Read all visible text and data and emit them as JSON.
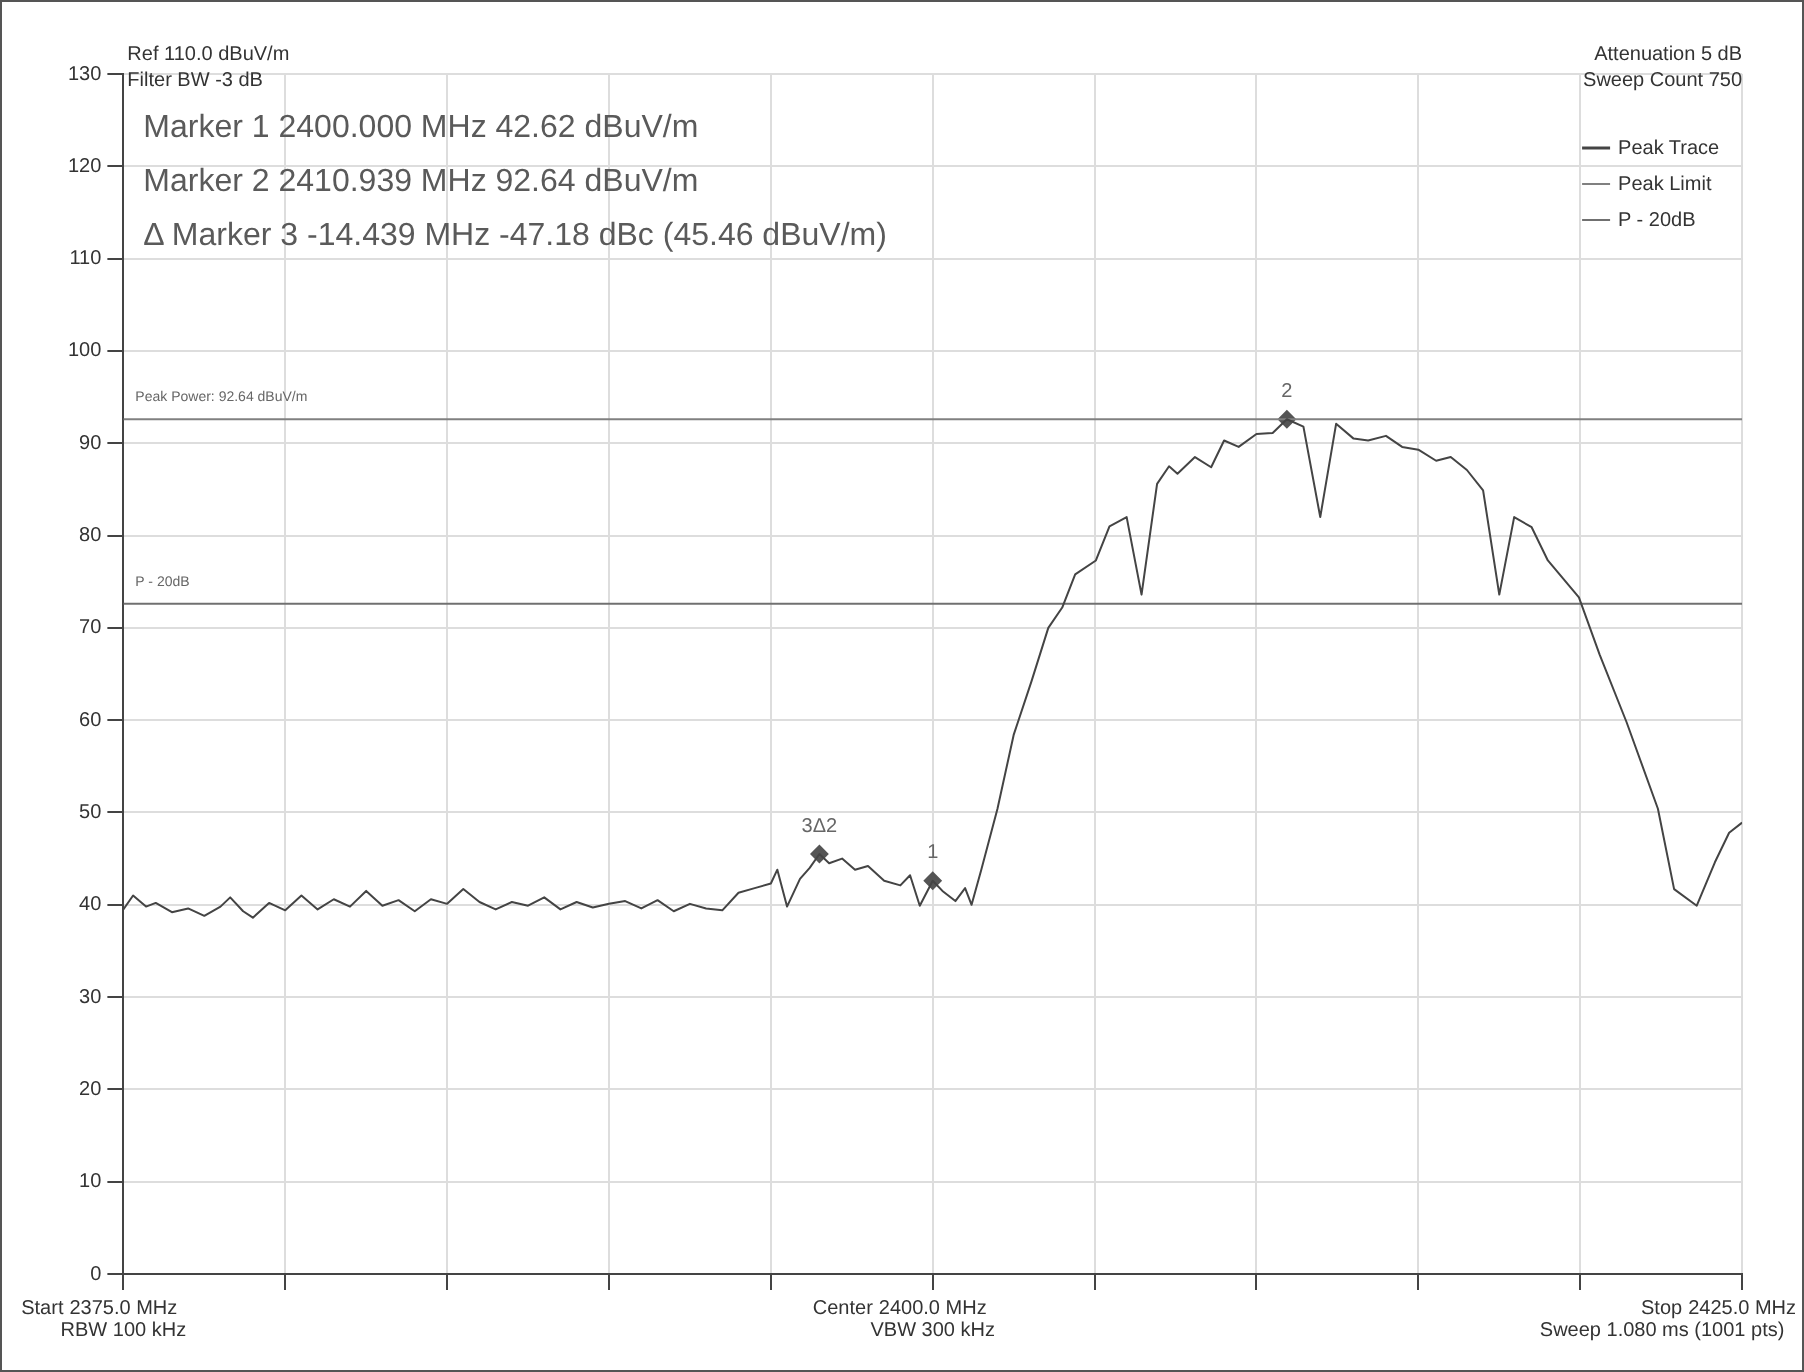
{
  "chart_data": {
    "type": "line",
    "xlim": [
      2375,
      2425
    ],
    "xticks": [
      {
        "value": 2375,
        "label": "2375.0 MHz"
      },
      {
        "value": 2380,
        "label": null
      },
      {
        "value": 2385,
        "label": null
      },
      {
        "value": 2390,
        "label": null
      },
      {
        "value": 2395,
        "label": null
      },
      {
        "value": 2400,
        "label": "2400.0 MHz"
      },
      {
        "value": 2405,
        "label": null
      },
      {
        "value": 2410,
        "label": null
      },
      {
        "value": 2415,
        "label": null
      },
      {
        "value": 2420,
        "label": null
      },
      {
        "value": 2425,
        "label": "2425.0 MHz"
      }
    ],
    "ylim": [
      0,
      130
    ],
    "yticks": [
      0,
      10,
      20,
      30,
      40,
      50,
      60,
      70,
      80,
      90,
      100,
      110,
      120,
      130
    ],
    "grid": true,
    "legend": "top right",
    "series": [
      {
        "name": "Peak Trace",
        "color": "#444444",
        "x": [
          2375,
          2375.3,
          2375.7,
          2376,
          2376.5,
          2377,
          2377.5,
          2378,
          2378.3,
          2378.7,
          2379,
          2379.5,
          2380,
          2380.5,
          2381,
          2381.5,
          2382,
          2382.5,
          2383,
          2383.5,
          2384,
          2384.5,
          2385,
          2385.5,
          2386,
          2386.5,
          2387,
          2387.5,
          2388,
          2388.5,
          2389,
          2389.5,
          2390,
          2390.5,
          2391,
          2391.5,
          2392,
          2392.5,
          2393,
          2393.5,
          2394,
          2394.5,
          2395,
          2395.2,
          2395.5,
          2395.9,
          2396.2,
          2396.5,
          2396.8,
          2397.2,
          2397.6,
          2398,
          2398.5,
          2399,
          2399.3,
          2399.6,
          2400,
          2400.3,
          2400.7,
          2401,
          2401.2,
          2401.5,
          2402,
          2402.5,
          2403.05,
          2403.57,
          2404,
          2404.4,
          2405.04,
          2405.46,
          2405.99,
          2406.45,
          2406.93,
          2407.3,
          2407.56,
          2408.1,
          2408.6,
          2409,
          2409.45,
          2410,
          2410.5,
          2410.939,
          2411.45,
          2411.97,
          2412.46,
          2413,
          2413.45,
          2414,
          2414.5,
          2415,
          2415.55,
          2416,
          2416.5,
          2417,
          2417.5,
          2417.96,
          2418.5,
          2419,
          2419.96,
          2420.6,
          2421.43,
          2422.4,
          2422.9,
          2423.6,
          2424.16,
          2424.6,
          2425
        ],
        "values": [
          39.5,
          41,
          39.8,
          40.2,
          39.2,
          39.6,
          38.8,
          39.8,
          40.8,
          39.3,
          38.6,
          40.2,
          39.4,
          41,
          39.5,
          40.6,
          39.8,
          41.5,
          39.9,
          40.5,
          39.3,
          40.6,
          40.1,
          41.7,
          40.3,
          39.5,
          40.3,
          39.9,
          40.8,
          39.5,
          40.3,
          39.7,
          40.1,
          40.4,
          39.6,
          40.5,
          39.3,
          40.1,
          39.6,
          39.4,
          41.3,
          41.8,
          42.3,
          43.8,
          39.8,
          42.8,
          44,
          45.5,
          44.5,
          45,
          43.8,
          44.2,
          42.6,
          42.1,
          43.2,
          39.9,
          42.6,
          41.5,
          40.4,
          41.8,
          40,
          43.8,
          50.4,
          58.4,
          64.2,
          70,
          72.2,
          75.8,
          77.3,
          81,
          82,
          73.6,
          85.6,
          87.5,
          86.7,
          88.5,
          87.4,
          90.3,
          89.6,
          91,
          91.1,
          92.6,
          91.8,
          82,
          92.1,
          90.5,
          90.3,
          90.8,
          89.6,
          89.3,
          88.1,
          88.5,
          87.1,
          84.9,
          73.6,
          82,
          80.9,
          77.3,
          73.3,
          67.1,
          59.8,
          50.4,
          41.7,
          39.9,
          44.6,
          47.8,
          48.9
        ]
      },
      {
        "name": "Peak Limit",
        "type": "line",
        "color": "#808080",
        "x": [
          2375,
          2425
        ],
        "values": [
          92.6,
          92.6
        ]
      },
      {
        "name": "P - 20dB",
        "type": "line",
        "color": "#707070",
        "x": [
          2375,
          2425
        ],
        "values": [
          72.6,
          72.6
        ]
      },
      {
        "type": "scatter",
        "marker": "diamond",
        "color": "#555555",
        "x": [
          2400,
          2410.939,
          2396.5
        ],
        "values": [
          42.6,
          92.6,
          45.5
        ]
      }
    ],
    "annotations": [
      {
        "text": "1",
        "x": 2400,
        "y": 42.6
      },
      {
        "text": "2",
        "x": 2410.939,
        "y": 92.6
      },
      {
        "text": "3Δ2",
        "x": 2396.5,
        "y": 45.5
      },
      {
        "text": "Peak Power: 92.64 dBuV/m",
        "x": 2375,
        "y": 92.6
      },
      {
        "text": "P - 20dB",
        "x": 2375,
        "y": 72.6
      },
      "Ref 110.0 dBuV/m",
      "Filter BW -3 dB",
      "Marker 1 2400.000 MHz 42.62 dBuV/m",
      "Marker 2 2410.939 MHz 92.64 dBuV/m",
      "Δ Marker 3 -14.439 MHz -47.18 dBc (45.46 dBuV/m)",
      "Attenuation 5 dB",
      "Sweep Count 750",
      "RBW 100 kHz",
      "VBW 300 kHz",
      "Sweep 1.080 ms (1001 pts)",
      "Start",
      "Center",
      "Stop"
    ]
  }
}
